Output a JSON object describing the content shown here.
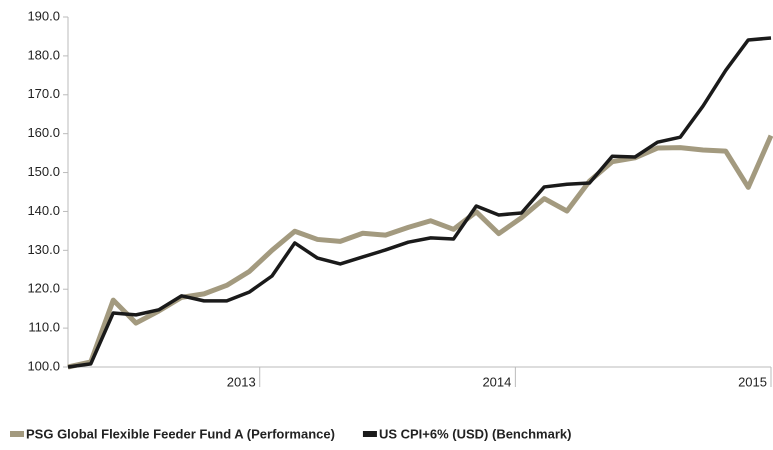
{
  "chart_data": {
    "type": "line",
    "x": [
      2012.25,
      2012.339,
      2012.427,
      2012.516,
      2012.605,
      2012.694,
      2012.782,
      2012.871,
      2012.96,
      2013.048,
      2013.137,
      2013.226,
      2013.315,
      2013.403,
      2013.492,
      2013.581,
      2013.669,
      2013.758,
      2013.847,
      2013.935,
      2014.024,
      2014.113,
      2014.202,
      2014.29,
      2014.379,
      2014.468,
      2014.556,
      2014.645,
      2014.734,
      2014.823,
      2014.911,
      2015.0
    ],
    "series": [
      {
        "name": "PSG Global Flexible Feeder Fund A (Performance)",
        "color": "#a39a7f",
        "values": [
          100,
          101.3,
          117.2,
          111.3,
          114.4,
          117.9,
          118.8,
          121,
          124.6,
          130,
          134.9,
          132.8,
          132.3,
          134.4,
          133.9,
          135.9,
          137.6,
          135.4,
          139.9,
          134.3,
          138.4,
          143.3,
          140.1,
          147.8,
          152.8,
          153.8,
          156.3,
          156.4,
          155.8,
          155.5,
          146.2,
          159.5
        ]
      },
      {
        "name": "US CPI+6% (USD) (Benchmark)",
        "color": "#1a1a1a",
        "values": [
          100,
          100.8,
          113.9,
          113.4,
          114.7,
          118.3,
          117,
          117,
          119.3,
          123.4,
          131.9,
          128,
          126.5,
          128.3,
          130.1,
          132.1,
          133.2,
          132.9,
          141.4,
          139.1,
          139.6,
          146.3,
          147,
          147.3,
          154.2,
          154,
          157.8,
          159.1,
          167.1,
          176.3,
          184.1,
          184.6
        ]
      }
    ],
    "xlim": [
      2012.25,
      2015.0
    ],
    "xticks": [
      2013,
      2014,
      2015
    ],
    "ylim": [
      100,
      190
    ],
    "yticks": [
      {
        "value": 100,
        "label": "100.0"
      },
      {
        "value": 110,
        "label": "110.0"
      },
      {
        "value": 120,
        "label": "120.0"
      },
      {
        "value": 130,
        "label": "130.0"
      },
      {
        "value": 140,
        "label": "140.0"
      },
      {
        "value": 150,
        "label": "150.0"
      },
      {
        "value": 160,
        "label": "160.0"
      },
      {
        "value": 170,
        "label": "170.0"
      },
      {
        "value": 180,
        "label": "180.0"
      },
      {
        "value": 190,
        "label": "190.0"
      }
    ],
    "grid": false,
    "legend": "bottom"
  }
}
